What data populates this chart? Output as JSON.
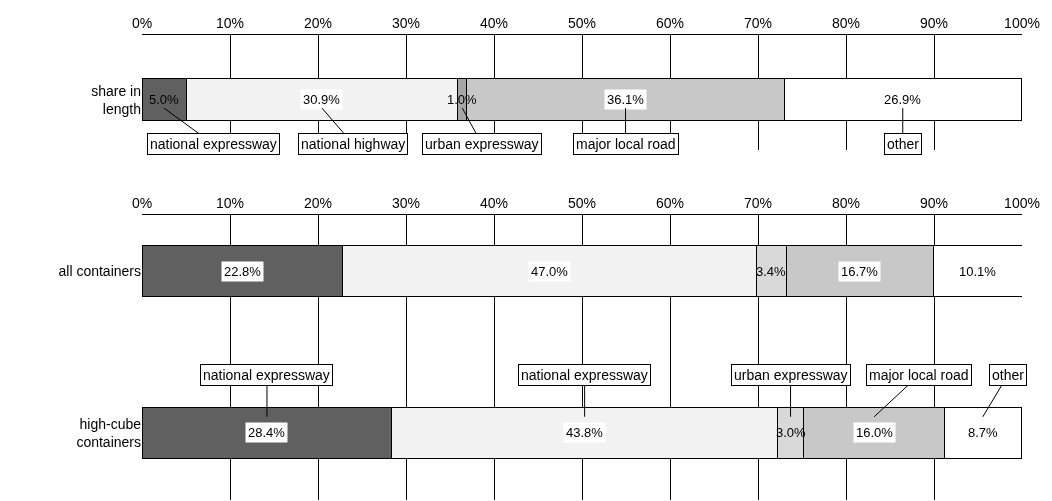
{
  "chart_data": [
    {
      "type": "bar",
      "orientation": "horizontal",
      "stacked": true,
      "categories": [
        "share in length"
      ],
      "series": [
        {
          "name": "national expressway",
          "color": "#606060",
          "values": [
            5.0
          ],
          "value_labels": [
            "5.0%"
          ]
        },
        {
          "name": "national highway",
          "color": "#f2f2f2",
          "values": [
            30.9
          ],
          "value_labels": [
            "30.9%"
          ]
        },
        {
          "name": "urban expressway",
          "color": "#a6a6a6",
          "values": [
            1.0
          ],
          "value_labels": [
            "1.0%"
          ]
        },
        {
          "name": "major local road",
          "color": "#c8c8c8",
          "values": [
            36.1
          ],
          "value_labels": [
            "36.1%"
          ]
        },
        {
          "name": "other",
          "color": "#ffffff",
          "values": [
            26.9
          ],
          "value_labels": [
            "26.9%"
          ]
        }
      ],
      "xlim": [
        0,
        100
      ],
      "xticks": [
        {
          "value": 0,
          "label": "0%"
        },
        {
          "value": 10,
          "label": "10%"
        },
        {
          "value": 20,
          "label": "20%"
        },
        {
          "value": 30,
          "label": "30%"
        },
        {
          "value": 40,
          "label": "40%"
        },
        {
          "value": 50,
          "label": "50%"
        },
        {
          "value": 60,
          "label": "60%"
        },
        {
          "value": 70,
          "label": "70%"
        },
        {
          "value": 80,
          "label": "80%"
        },
        {
          "value": 90,
          "label": "90%"
        },
        {
          "value": 100,
          "label": "100%"
        }
      ],
      "grid": "x",
      "legend": "bottom"
    },
    {
      "type": "bar",
      "orientation": "horizontal",
      "stacked": true,
      "categories": [
        "all containers",
        "high-cube containers"
      ],
      "series": [
        {
          "name": "national expressway",
          "color": "#606060",
          "values": [
            22.8,
            28.4
          ],
          "value_labels": [
            "22.8%",
            "28.4%"
          ]
        },
        {
          "name": "national expressway",
          "color": "#f2f2f2",
          "values": [
            47.0,
            43.8
          ],
          "value_labels": [
            "47.0%",
            "43.8%"
          ]
        },
        {
          "name": "urban expressway",
          "color": "#d9d9d9",
          "values": [
            3.4,
            3.0
          ],
          "value_labels": [
            "3.4%",
            "3.0%"
          ]
        },
        {
          "name": "major local road",
          "color": "#c8c8c8",
          "values": [
            16.7,
            16.0
          ],
          "value_labels": [
            "16.7%",
            "16.0%"
          ]
        },
        {
          "name": "other",
          "color": "#ffffff",
          "values": [
            10.1,
            8.7
          ],
          "value_labels": [
            "10.1%",
            "8.7%"
          ]
        }
      ],
      "xlim": [
        0,
        100
      ],
      "xticks": [
        {
          "value": 0,
          "label": "0%"
        },
        {
          "value": 10,
          "label": "10%"
        },
        {
          "value": 20,
          "label": "20%"
        },
        {
          "value": 30,
          "label": "30%"
        },
        {
          "value": 40,
          "label": "40%"
        },
        {
          "value": 50,
          "label": "50%"
        },
        {
          "value": 60,
          "label": "60%"
        },
        {
          "value": 70,
          "label": "70%"
        },
        {
          "value": 80,
          "label": "80%"
        },
        {
          "value": 90,
          "label": "90%"
        },
        {
          "value": 100,
          "label": "100%"
        }
      ],
      "grid": "x",
      "legend": "bottom right"
    }
  ]
}
